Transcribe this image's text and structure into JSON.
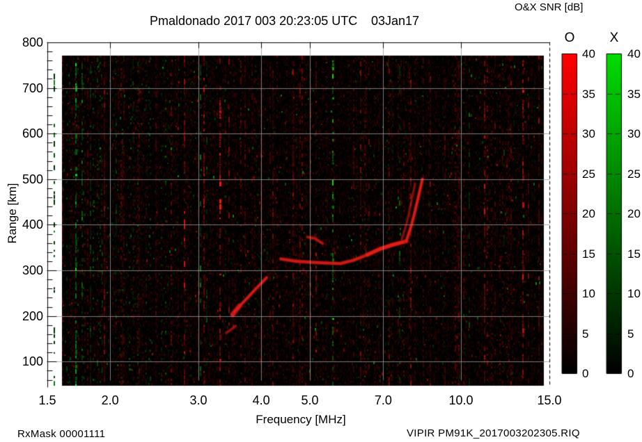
{
  "header": {
    "colorbar_title": "O&X SNR [dB]"
  },
  "footer": {
    "left": "RxMask 00001111",
    "right": "VIPIR  PM91K_2017003202305.RIQ"
  },
  "chart_data": {
    "type": "heatmap",
    "title": "Pmaldonado 2017 003 20:23:05 UTC",
    "date_label": "03Jan17",
    "xlabel": "Frequency [MHz]",
    "ylabel": "Range [km]",
    "xscale": "log",
    "xlim": [
      1.5,
      15.0
    ],
    "xticks": [
      "1.5",
      "2.0",
      "3.0",
      "4.0",
      "5.0",
      "7.0",
      "10.0",
      "15.0"
    ],
    "ylim": [
      44,
      800
    ],
    "yticks": [
      "100",
      "200",
      "300",
      "400",
      "500",
      "600",
      "700",
      "800"
    ],
    "y_minor_step": 20,
    "grid": true,
    "grid_color": "#9a9a9a",
    "background": "#000000",
    "legend_position": "right",
    "colorbars": [
      {
        "label": "O",
        "top_color": "#ff0000",
        "units": "dB",
        "ticks": [
          "40",
          "35",
          "30",
          "25",
          "20",
          "15",
          "10",
          "5",
          "0"
        ]
      },
      {
        "label": "X",
        "top_color": "#00dd00",
        "units": "dB",
        "ticks": [
          "40",
          "35",
          "30",
          "25",
          "20",
          "15",
          "10",
          "5",
          "0"
        ]
      }
    ],
    "noise_seed": 1234567,
    "rfi_stripes": [
      {
        "f": 1.55,
        "c": "g",
        "s": 0.55,
        "d": 0.3
      },
      {
        "f": 1.71,
        "c": "g",
        "s": 0.95,
        "d": 0.5
      },
      {
        "f": 1.76,
        "c": "g",
        "s": 0.55,
        "d": 0.35
      },
      {
        "f": 1.83,
        "c": "g",
        "s": 0.4,
        "d": 0.3
      },
      {
        "f": 1.93,
        "c": "g",
        "s": 0.3,
        "d": 0.25
      },
      {
        "f": 2.06,
        "c": "g",
        "s": 0.28,
        "d": 0.22
      },
      {
        "f": 2.22,
        "c": "g",
        "s": 0.25,
        "d": 0.2
      },
      {
        "f": 3.03,
        "c": "g",
        "s": 0.5,
        "d": 0.32
      },
      {
        "f": 3.12,
        "c": "g",
        "s": 0.35,
        "d": 0.25
      },
      {
        "f": 5.55,
        "c": "g",
        "s": 0.9,
        "d": 0.5
      },
      {
        "f": 7.55,
        "c": "g",
        "s": 0.42,
        "d": 0.28
      },
      {
        "f": 10.4,
        "c": "g",
        "s": 0.45,
        "d": 0.3
      },
      {
        "f": 12.2,
        "c": "g",
        "s": 0.25,
        "d": 0.18
      },
      {
        "f": 1.95,
        "c": "r",
        "s": 0.5,
        "d": 0.75
      },
      {
        "f": 2.12,
        "c": "r",
        "s": 0.3,
        "d": 0.45
      },
      {
        "f": 2.29,
        "c": "r",
        "s": 0.38,
        "d": 0.55
      },
      {
        "f": 2.47,
        "c": "r",
        "s": 0.3,
        "d": 0.4
      },
      {
        "f": 2.81,
        "c": "r",
        "s": 0.85,
        "d": 0.55
      },
      {
        "f": 3.08,
        "c": "r",
        "s": 0.7,
        "d": 0.5
      },
      {
        "f": 3.31,
        "c": "r",
        "s": 1.0,
        "d": 0.6
      },
      {
        "f": 3.45,
        "c": "r",
        "s": 0.5,
        "d": 0.4
      },
      {
        "f": 3.72,
        "c": "r",
        "s": 0.4,
        "d": 0.45
      },
      {
        "f": 4.0,
        "c": "r",
        "s": 0.35,
        "d": 0.5
      },
      {
        "f": 4.22,
        "c": "r",
        "s": 0.45,
        "d": 0.5
      },
      {
        "f": 4.63,
        "c": "r",
        "s": 0.6,
        "d": 0.55
      },
      {
        "f": 4.78,
        "c": "r",
        "s": 0.45,
        "d": 0.5
      },
      {
        "f": 5.02,
        "c": "r",
        "s": 0.5,
        "d": 0.45
      },
      {
        "f": 5.15,
        "c": "r",
        "s": 0.7,
        "d": 0.4
      },
      {
        "f": 6.32,
        "c": "r",
        "s": 0.5,
        "d": 0.45
      },
      {
        "f": 6.55,
        "c": "r",
        "s": 0.38,
        "d": 0.4
      },
      {
        "f": 7.2,
        "c": "r",
        "s": 0.45,
        "d": 0.4
      },
      {
        "f": 7.95,
        "c": "r",
        "s": 0.55,
        "d": 0.45
      },
      {
        "f": 8.7,
        "c": "r",
        "s": 0.5,
        "d": 0.38
      },
      {
        "f": 9.3,
        "c": "r",
        "s": 0.35,
        "d": 0.35
      },
      {
        "f": 9.9,
        "c": "r",
        "s": 0.45,
        "d": 0.4
      },
      {
        "f": 11.15,
        "c": "r",
        "s": 0.85,
        "d": 0.5
      },
      {
        "f": 11.7,
        "c": "r",
        "s": 0.4,
        "d": 0.4
      },
      {
        "f": 12.6,
        "c": "r",
        "s": 0.5,
        "d": 0.4
      },
      {
        "f": 13.3,
        "c": "r",
        "s": 0.9,
        "d": 0.55
      },
      {
        "f": 13.65,
        "c": "r",
        "s": 0.5,
        "d": 0.4
      },
      {
        "f": 14.3,
        "c": "r",
        "s": 0.6,
        "d": 0.45
      }
    ],
    "trace_segments": [
      {
        "pts": [
          [
            3.41,
            163
          ],
          [
            3.56,
            178
          ]
        ],
        "w": 3,
        "a": 0.55
      },
      {
        "pts": [
          [
            3.51,
            203
          ],
          [
            3.62,
            222
          ]
        ],
        "w": 6,
        "a": 0.95
      },
      {
        "pts": [
          [
            3.53,
            208
          ],
          [
            3.67,
            228
          ],
          [
            3.86,
            254
          ],
          [
            4.1,
            284
          ]
        ],
        "w": 3.5,
        "a": 0.9
      },
      {
        "pts": [
          [
            4.38,
            325
          ],
          [
            4.7,
            320
          ],
          [
            5.0,
            318
          ],
          [
            5.4,
            316
          ],
          [
            5.75,
            315
          ],
          [
            6.1,
            322
          ],
          [
            6.5,
            334
          ]
        ],
        "w": 4,
        "a": 0.85
      },
      {
        "pts": [
          [
            6.5,
            334
          ],
          [
            6.9,
            347
          ],
          [
            7.3,
            356
          ],
          [
            7.78,
            364
          ]
        ],
        "w": 5,
        "a": 1.0
      },
      {
        "pts": [
          [
            7.78,
            364
          ],
          [
            7.95,
            395
          ],
          [
            8.08,
            425
          ],
          [
            8.2,
            455
          ],
          [
            8.3,
            480
          ],
          [
            8.38,
            500
          ]
        ],
        "w": 3.5,
        "a": 0.95
      },
      {
        "pts": [
          [
            7.62,
            368
          ],
          [
            7.78,
            400
          ],
          [
            7.9,
            432
          ],
          [
            8.0,
            462
          ],
          [
            8.1,
            490
          ]
        ],
        "w": 2.5,
        "a": 0.5
      },
      {
        "pts": [
          [
            4.95,
            373
          ],
          [
            5.12,
            370
          ],
          [
            5.3,
            359
          ]
        ],
        "w": 3.5,
        "a": 0.7
      }
    ]
  }
}
